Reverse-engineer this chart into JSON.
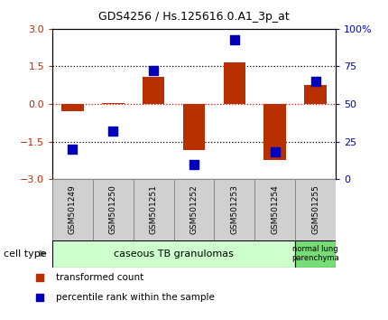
{
  "title": "GDS4256 / Hs.125616.0.A1_3p_at",
  "samples": [
    "GSM501249",
    "GSM501250",
    "GSM501251",
    "GSM501252",
    "GSM501253",
    "GSM501254",
    "GSM501255"
  ],
  "transformed_counts": [
    -0.3,
    0.02,
    1.1,
    -1.85,
    1.65,
    -2.25,
    0.75
  ],
  "percentile_ranks": [
    20,
    32,
    72,
    10,
    93,
    18,
    65
  ],
  "ylim_left": [
    -3,
    3
  ],
  "ylim_right": [
    0,
    100
  ],
  "yticks_left": [
    -3,
    -1.5,
    0,
    1.5,
    3
  ],
  "yticks_right": [
    0,
    25,
    50,
    75,
    100
  ],
  "ytick_labels_right": [
    "0",
    "25",
    "50",
    "75",
    "100%"
  ],
  "bar_color": "#b83000",
  "dot_color": "#0000bb",
  "bar_width": 0.55,
  "dot_size": 55,
  "group1_label": "caseous TB granulomas",
  "group1_color": "#ccffcc",
  "group1_samples": 6,
  "group2_label": "normal lung\nparenchyma",
  "group2_color": "#77dd77",
  "group2_samples": 1,
  "cell_type_label": "cell type",
  "legend_bar_label": "transformed count",
  "legend_dot_label": "percentile rank within the sample",
  "plot_bg": "#ffffff",
  "tick_color_left": "#cc2200",
  "tick_color_right": "#0000cc",
  "sample_box_color": "#d0d0d0",
  "sample_box_edge": "#888888"
}
